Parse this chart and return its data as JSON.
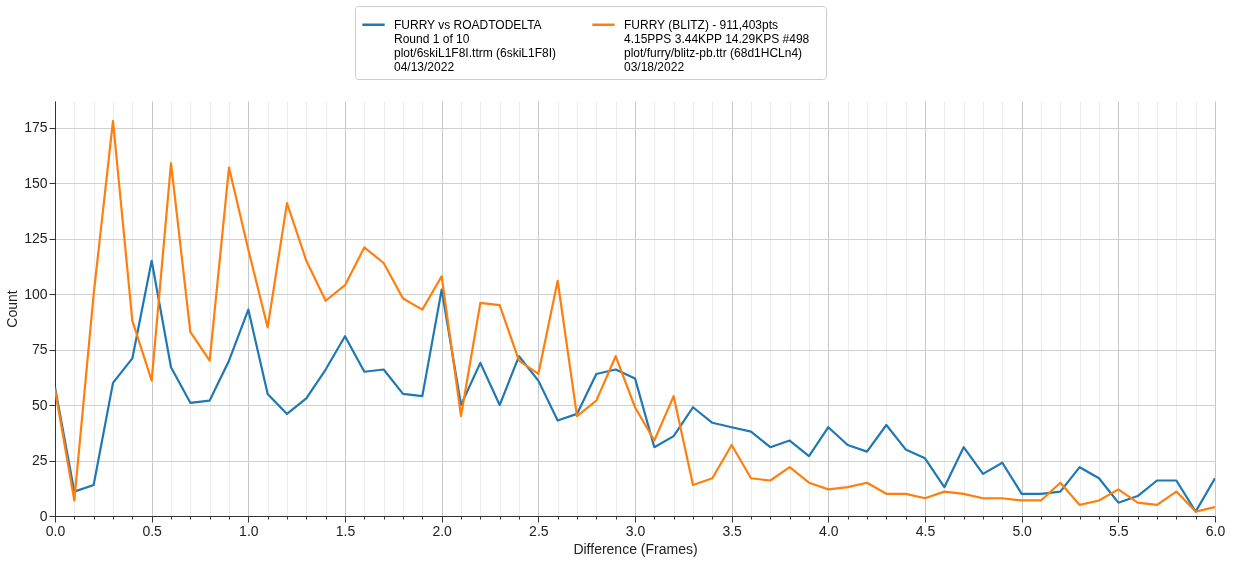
{
  "chart_data": {
    "type": "line",
    "xlabel": "Difference (Frames)",
    "ylabel": "Count",
    "x": [
      0.0,
      0.1,
      0.2,
      0.3,
      0.4,
      0.5,
      0.6,
      0.7,
      0.8,
      0.9,
      1.0,
      1.1,
      1.2,
      1.3,
      1.4,
      1.5,
      1.6,
      1.7,
      1.8,
      1.9,
      2.0,
      2.1,
      2.2,
      2.3,
      2.4,
      2.5,
      2.6,
      2.7,
      2.8,
      2.9,
      3.0,
      3.1,
      3.2,
      3.3,
      3.4,
      3.5,
      3.6,
      3.7,
      3.8,
      3.9,
      4.0,
      4.1,
      4.2,
      4.3,
      4.4,
      4.5,
      4.6,
      4.7,
      4.8,
      4.9,
      5.0,
      5.1,
      5.2,
      5.3,
      5.4,
      5.5,
      5.6,
      5.7,
      5.8,
      5.9,
      6.0
    ],
    "series": [
      {
        "name": "FURRY vs ROADTODELTA\nRound 1 of 10\nplot/6skiL1F8I.ttrm (6skiL1F8I)\n04/13/2022",
        "color": "#1f77b4",
        "values": [
          58,
          11,
          14,
          60,
          71,
          115,
          67,
          51,
          52,
          70,
          93,
          55,
          46,
          53,
          66,
          81,
          65,
          66,
          55,
          54,
          102,
          50,
          69,
          50,
          72,
          61,
          43,
          46,
          64,
          66,
          62,
          31,
          36,
          49,
          42,
          40,
          38,
          31,
          34,
          27,
          40,
          32,
          29,
          41,
          30,
          26,
          13,
          31,
          19,
          24,
          10,
          10,
          11,
          22,
          17,
          6,
          9,
          16,
          16,
          2,
          17
        ]
      },
      {
        "name": "FURRY (BLITZ) - 911,403pts\n4.15PPS  3.44KPP  14.29KPS  #498\nplot/furry/blitz-pb.ttr (68d1HCLn4)\n03/18/2022",
        "color": "#ff7f0e",
        "values": [
          57,
          7,
          100,
          178,
          88,
          61,
          159,
          83,
          70,
          157,
          120,
          85,
          141,
          115,
          97,
          104,
          121,
          114,
          98,
          93,
          108,
          45,
          96,
          95,
          70,
          64,
          106,
          45,
          52,
          72,
          49,
          34,
          54,
          14,
          17,
          32,
          17,
          16,
          22,
          15,
          12,
          13,
          15,
          10,
          10,
          8,
          11,
          10,
          8,
          8,
          7,
          7,
          15,
          5,
          7,
          12,
          6,
          5,
          11,
          2,
          4
        ]
      }
    ],
    "xlim": [
      0,
      6
    ],
    "ylim": [
      0,
      187
    ],
    "xticks": [
      {
        "value": 0,
        "label": "0.0"
      },
      {
        "value": 0.1,
        "label": null
      },
      {
        "value": 0.2,
        "label": null
      },
      {
        "value": 0.3,
        "label": null
      },
      {
        "value": 0.4,
        "label": null
      },
      {
        "value": 0.5,
        "label": "0.5"
      },
      {
        "value": 0.6,
        "label": null
      },
      {
        "value": 0.7,
        "label": null
      },
      {
        "value": 0.8,
        "label": null
      },
      {
        "value": 0.9,
        "label": null
      },
      {
        "value": 1,
        "label": "1.0"
      },
      {
        "value": 1.1,
        "label": null
      },
      {
        "value": 1.2,
        "label": null
      },
      {
        "value": 1.3,
        "label": null
      },
      {
        "value": 1.4,
        "label": null
      },
      {
        "value": 1.5,
        "label": "1.5"
      },
      {
        "value": 1.6,
        "label": null
      },
      {
        "value": 1.7,
        "label": null
      },
      {
        "value": 1.8,
        "label": null
      },
      {
        "value": 1.9,
        "label": null
      },
      {
        "value": 2,
        "label": "2.0"
      },
      {
        "value": 2.1,
        "label": null
      },
      {
        "value": 2.2,
        "label": null
      },
      {
        "value": 2.3,
        "label": null
      },
      {
        "value": 2.4,
        "label": null
      },
      {
        "value": 2.5,
        "label": "2.5"
      },
      {
        "value": 2.6,
        "label": null
      },
      {
        "value": 2.7,
        "label": null
      },
      {
        "value": 2.8,
        "label": null
      },
      {
        "value": 2.9,
        "label": null
      },
      {
        "value": 3,
        "label": "3.0"
      },
      {
        "value": 3.1,
        "label": null
      },
      {
        "value": 3.2,
        "label": null
      },
      {
        "value": 3.3,
        "label": null
      },
      {
        "value": 3.4,
        "label": null
      },
      {
        "value": 3.5,
        "label": "3.5"
      },
      {
        "value": 3.6,
        "label": null
      },
      {
        "value": 3.7,
        "label": null
      },
      {
        "value": 3.8,
        "label": null
      },
      {
        "value": 3.9,
        "label": null
      },
      {
        "value": 4,
        "label": "4.0"
      },
      {
        "value": 4.1,
        "label": null
      },
      {
        "value": 4.2,
        "label": null
      },
      {
        "value": 4.3,
        "label": null
      },
      {
        "value": 4.4,
        "label": null
      },
      {
        "value": 4.5,
        "label": "4.5"
      },
      {
        "value": 4.6,
        "label": null
      },
      {
        "value": 4.7,
        "label": null
      },
      {
        "value": 4.8,
        "label": null
      },
      {
        "value": 4.9,
        "label": null
      },
      {
        "value": 5,
        "label": "5.0"
      },
      {
        "value": 5.1,
        "label": null
      },
      {
        "value": 5.2,
        "label": null
      },
      {
        "value": 5.3,
        "label": null
      },
      {
        "value": 5.4,
        "label": null
      },
      {
        "value": 5.5,
        "label": "5.5"
      },
      {
        "value": 5.6,
        "label": null
      },
      {
        "value": 5.7,
        "label": null
      },
      {
        "value": 5.8,
        "label": null
      },
      {
        "value": 5.9,
        "label": null
      },
      {
        "value": 6,
        "label": "6.0"
      }
    ],
    "yticks": [
      0,
      25,
      50,
      75,
      100,
      125,
      150,
      175
    ],
    "grid": true,
    "legend": "top",
    "marker": "none",
    "line_style": "solid"
  }
}
